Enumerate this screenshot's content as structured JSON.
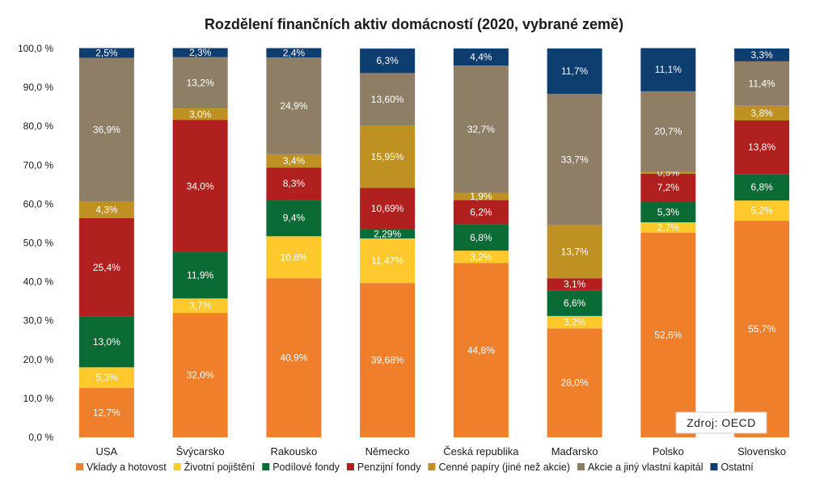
{
  "chart_data": {
    "type": "bar",
    "stacked": true,
    "title": "Rozdělení finančních aktiv domácností (2020, vybrané země)",
    "source": "Zdroj: OECD",
    "categories": [
      "USA",
      "Švýcarsko",
      "Rakousko",
      "Německo",
      "Česká republika",
      "Maďarsko",
      "Polsko",
      "Slovensko"
    ],
    "ylim": [
      0,
      100
    ],
    "yticks": [
      "0,0 %",
      "10,0 %",
      "20,0 %",
      "30,0 %",
      "40,0 %",
      "50,0 %",
      "60,0 %",
      "70,0 %",
      "80,0 %",
      "90,0 %",
      "100,0 %"
    ],
    "grid": false,
    "legend_position": "bottom",
    "series": [
      {
        "name": "Vklady a hotovost",
        "color": "#F07F2C",
        "values": [
          12.7,
          32.0,
          40.9,
          39.68,
          44.8,
          28.0,
          52.6,
          55.7
        ],
        "labels": [
          "12,7%",
          "32,0%",
          "40,9%",
          "39,68%",
          "44,8%",
          "28,0%",
          "52,6%",
          "55,7%"
        ]
      },
      {
        "name": "Životní pojištění",
        "color": "#FFC82C",
        "values": [
          5.3,
          3.7,
          10.8,
          11.47,
          3.2,
          3.2,
          2.7,
          5.2
        ],
        "labels": [
          "5,3%",
          "3,7%",
          "10,8%",
          "11,47%",
          "3,2%",
          "3,2%",
          "2,7%",
          "5,2%"
        ]
      },
      {
        "name": "Podílové fondy",
        "color": "#0B6B35",
        "values": [
          13.0,
          11.9,
          9.4,
          2.29,
          6.8,
          6.6,
          5.3,
          6.8
        ],
        "labels": [
          "13,0%",
          "11,9%",
          "9,4%",
          "2,29%",
          "6,8%",
          "6,6%",
          "5,3%",
          "6,8%"
        ]
      },
      {
        "name": "Penzijní fondy",
        "color": "#B0201E",
        "values": [
          25.4,
          34.0,
          8.3,
          10.69,
          6.2,
          3.1,
          7.2,
          13.8
        ],
        "labels": [
          "25,4%",
          "34,0%",
          "8,3%",
          "10,69%",
          "6,2%",
          "3,1%",
          "7,2%",
          "13,8%"
        ]
      },
      {
        "name": "Cenné papíry (jiné než akcie)",
        "color": "#BF9022",
        "values": [
          4.3,
          3.0,
          3.4,
          15.95,
          1.9,
          13.7,
          0.5,
          3.8
        ],
        "labels": [
          "4,3%",
          "3,0%",
          "3,4%",
          "15,95%",
          "1,9%",
          "13,7%",
          "0,5%",
          "3,8%"
        ]
      },
      {
        "name": "Akcie a jiný vlastní kapitál",
        "color": "#8E7E66",
        "values": [
          36.9,
          13.2,
          24.9,
          13.6,
          32.7,
          33.7,
          20.7,
          11.4
        ],
        "labels": [
          "36,9%",
          "13,2%",
          "24,9%",
          "13,60%",
          "32,7%",
          "33,7%",
          "20,7%",
          "11,4%"
        ]
      },
      {
        "name": "Ostatní",
        "color": "#0E3D6F",
        "values": [
          2.5,
          2.3,
          2.4,
          6.3,
          4.4,
          11.7,
          11.1,
          3.3
        ],
        "labels": [
          "2,5%",
          "2,3%",
          "2,4%",
          "6,3%",
          "4,4%",
          "11,7%",
          "11,1%",
          "3,3%"
        ]
      }
    ]
  }
}
